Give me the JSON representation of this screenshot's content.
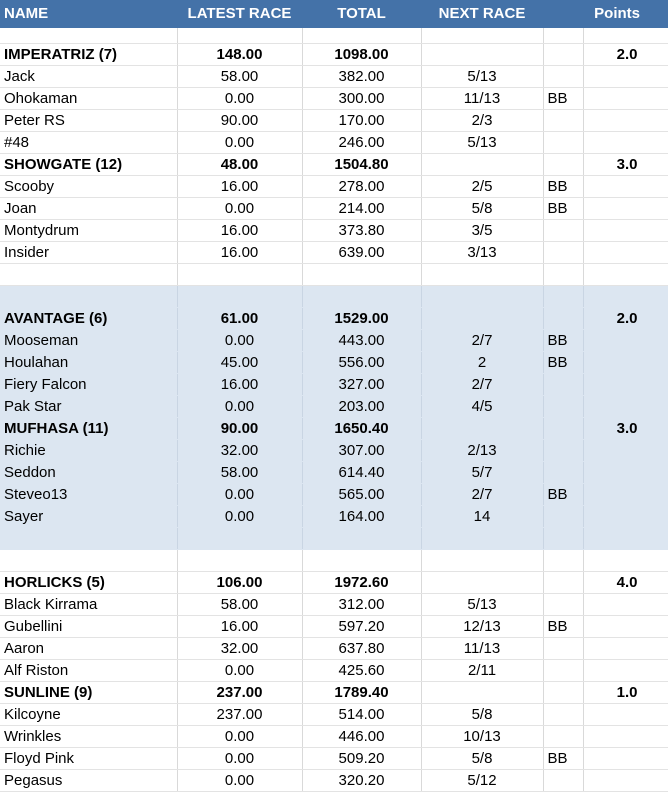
{
  "headers": [
    "NAME",
    "LATEST RACE",
    "TOTAL",
    "NEXT RACE",
    "",
    "Points"
  ],
  "groups": [
    {
      "shaded": false,
      "teams": [
        {
          "name": "IMPERATRIZ (7)",
          "latest": "148.00",
          "total": "1098.00",
          "points": "2.0",
          "members": [
            {
              "name": "Jack",
              "latest": "58.00",
              "total": "382.00",
              "next": "5/13",
              "flag": ""
            },
            {
              "name": "Ohokaman",
              "latest": "0.00",
              "total": "300.00",
              "next": "11/13",
              "flag": "BB"
            },
            {
              "name": "Peter RS",
              "latest": "90.00",
              "total": "170.00",
              "next": "2/3",
              "flag": ""
            },
            {
              "name": "#48",
              "latest": "0.00",
              "total": "246.00",
              "next": "5/13",
              "flag": ""
            }
          ]
        },
        {
          "name": "SHOWGATE (12)",
          "latest": "48.00",
          "total": "1504.80",
          "points": "3.0",
          "members": [
            {
              "name": "Scooby",
              "latest": "16.00",
              "total": "278.00",
              "next": "2/5",
              "flag": "BB"
            },
            {
              "name": "Joan",
              "latest": "0.00",
              "total": "214.00",
              "next": "5/8",
              "flag": "BB"
            },
            {
              "name": "Montydrum",
              "latest": "16.00",
              "total": "373.80",
              "next": "3/5",
              "flag": ""
            },
            {
              "name": "Insider",
              "latest": "16.00",
              "total": "639.00",
              "next": "3/13",
              "flag": ""
            }
          ]
        }
      ]
    },
    {
      "shaded": true,
      "teams": [
        {
          "name": "AVANTAGE (6)",
          "latest": "61.00",
          "total": "1529.00",
          "points": "2.0",
          "members": [
            {
              "name": "Mooseman",
              "latest": "0.00",
              "total": "443.00",
              "next": "2/7",
              "flag": "BB"
            },
            {
              "name": "Houlahan",
              "latest": "45.00",
              "total": "556.00",
              "next": "2",
              "flag": "BB"
            },
            {
              "name": "Fiery Falcon",
              "latest": "16.00",
              "total": "327.00",
              "next": "2/7",
              "flag": ""
            },
            {
              "name": "Pak Star",
              "latest": "0.00",
              "total": "203.00",
              "next": "4/5",
              "flag": ""
            }
          ]
        },
        {
          "name": "MUFHASA (11)",
          "latest": "90.00",
          "total": "1650.40",
          "points": "3.0",
          "members": [
            {
              "name": "Richie",
              "latest": "32.00",
              "total": "307.00",
              "next": "2/13",
              "flag": ""
            },
            {
              "name": "Seddon",
              "latest": "58.00",
              "total": "614.40",
              "next": "5/7",
              "flag": ""
            },
            {
              "name": "Steveo13",
              "latest": "0.00",
              "total": "565.00",
              "next": "2/7",
              "flag": "BB"
            },
            {
              "name": "Sayer",
              "latest": "0.00",
              "total": "164.00",
              "next": "14",
              "flag": ""
            }
          ]
        }
      ]
    },
    {
      "shaded": false,
      "teams": [
        {
          "name": "HORLICKS (5)",
          "latest": "106.00",
          "total": "1972.60",
          "points": "4.0",
          "members": [
            {
              "name": "Black Kirrama",
              "latest": "58.00",
              "total": "312.00",
              "next": "5/13",
              "flag": ""
            },
            {
              "name": "Gubellini",
              "latest": "16.00",
              "total": "597.20",
              "next": "12/13",
              "flag": "BB"
            },
            {
              "name": "Aaron",
              "latest": "32.00",
              "total": "637.80",
              "next": "11/13",
              "flag": ""
            },
            {
              "name": "Alf Riston",
              "latest": "0.00",
              "total": "425.60",
              "next": "2/11",
              "flag": ""
            }
          ]
        },
        {
          "name": "SUNLINE (9)",
          "latest": "237.00",
          "total": "1789.40",
          "points": "1.0",
          "members": [
            {
              "name": "Kilcoyne",
              "latest": "237.00",
              "total": "514.00",
              "next": "5/8",
              "flag": ""
            },
            {
              "name": "Wrinkles",
              "latest": "0.00",
              "total": "446.00",
              "next": "10/13",
              "flag": ""
            },
            {
              "name": "Floyd Pink",
              "latest": "0.00",
              "total": "509.20",
              "next": "5/8",
              "flag": "BB"
            },
            {
              "name": "Pegasus",
              "latest": "0.00",
              "total": "320.20",
              "next": "5/12",
              "flag": ""
            }
          ]
        }
      ]
    }
  ]
}
